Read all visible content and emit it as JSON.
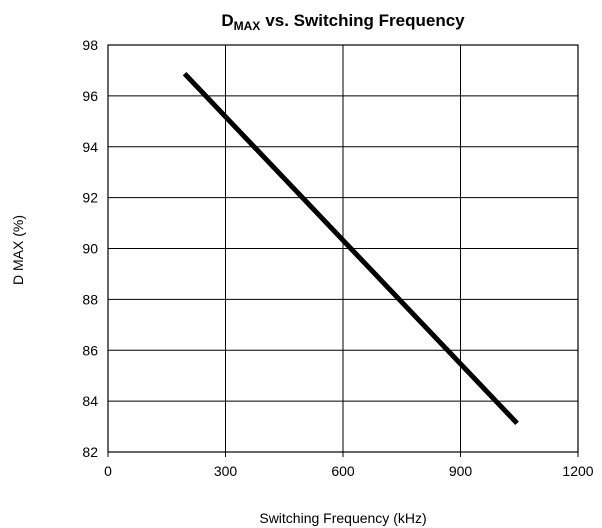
{
  "chart_data": {
    "type": "line",
    "title": {
      "base": "D",
      "subscript": "MAX",
      "rest": "vs. Switching Frequency"
    },
    "xlabel": "Switching Frequency (kHz)",
    "ylabel": "D MAX (%)",
    "x": [
      200,
      1040
    ],
    "series": [
      {
        "name": "DMAX",
        "color": "#000000",
        "values": [
          96.8,
          83.2
        ]
      }
    ],
    "xlim": [
      0,
      1200
    ],
    "xticks": [
      0,
      300,
      600,
      900,
      1200
    ],
    "ylim": [
      82,
      98
    ],
    "yticks": [
      82,
      84,
      86,
      88,
      90,
      92,
      94,
      96,
      98
    ],
    "grid": true
  }
}
